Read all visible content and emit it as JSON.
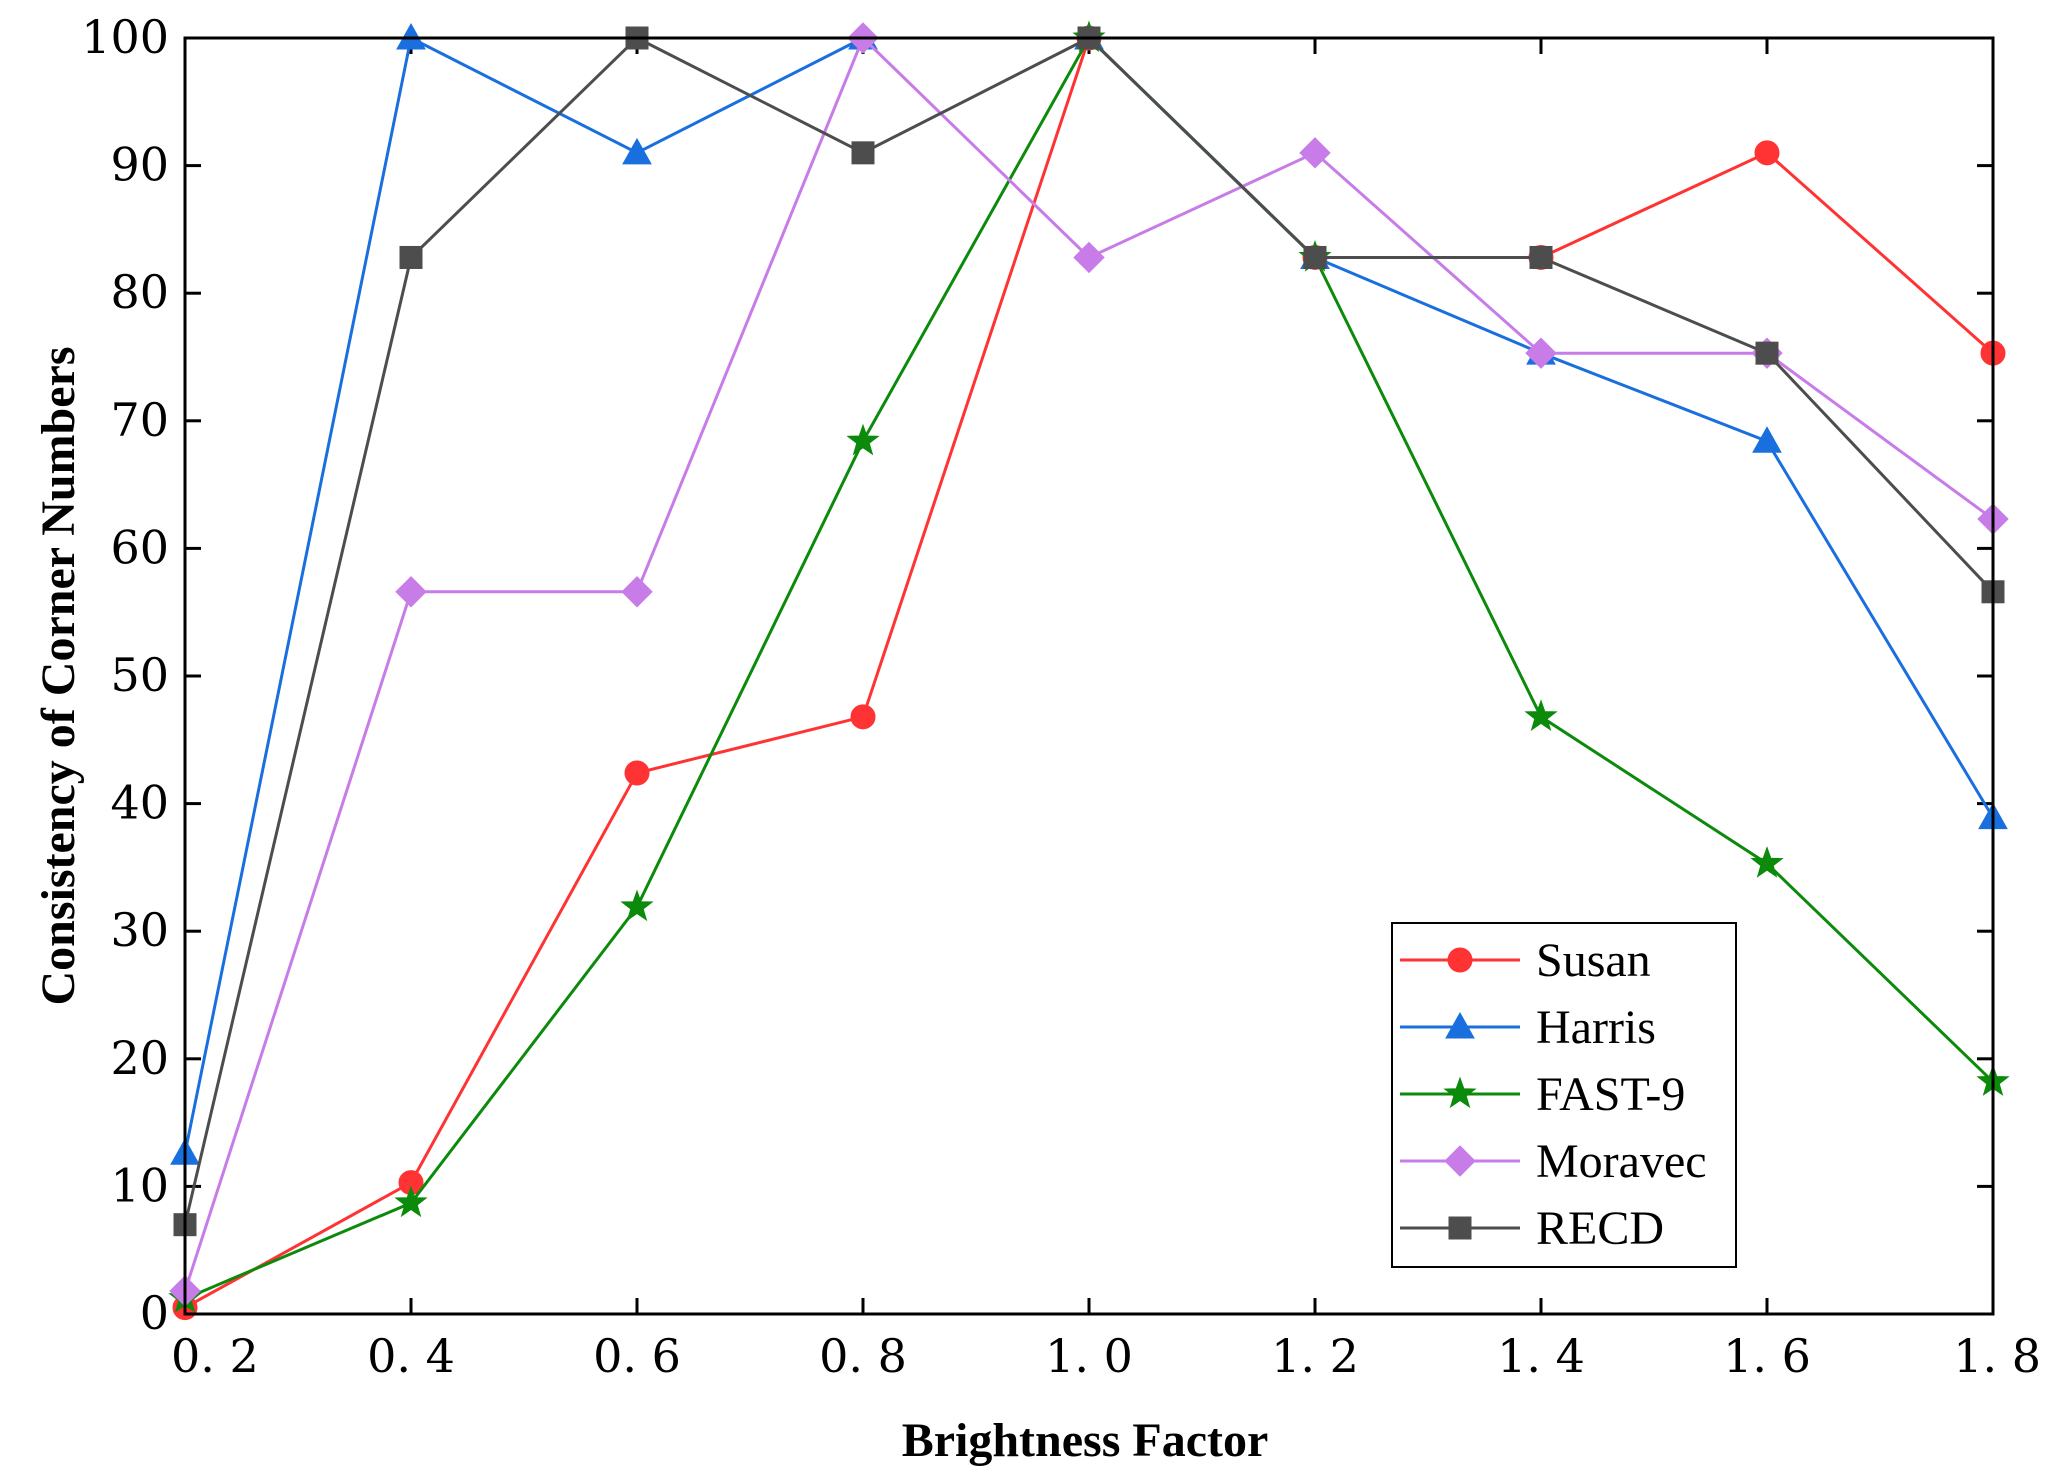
{
  "chart_data": {
    "type": "line",
    "title": "",
    "xlabel": "Brightness Factor",
    "ylabel": "Consistency of Corner Numbers",
    "x": [
      0.2,
      0.4,
      0.6,
      0.8,
      1.0,
      1.2,
      1.4,
      1.6,
      1.8
    ],
    "x_tick_labels": [
      "0. 2",
      "0. 4",
      "0. 6",
      "0. 8",
      "1. 0",
      "1. 2",
      "1. 4",
      "1. 6",
      "1. 8"
    ],
    "y_ticks": [
      0,
      10,
      20,
      30,
      40,
      50,
      60,
      70,
      80,
      90,
      100
    ],
    "y_tick_labels": [
      "0",
      "10",
      "20",
      "30",
      "40",
      "50",
      "60",
      "70",
      "80",
      "90",
      "100"
    ],
    "xlim": [
      0.2,
      1.8
    ],
    "ylim": [
      0,
      100
    ],
    "grid": false,
    "legend_position": "bottom-right",
    "series": [
      {
        "name": "Susan",
        "color": "#ff3333",
        "marker": "circle",
        "values": [
          0.5,
          10.3,
          42.4,
          46.8,
          100,
          82.8,
          82.8,
          91.0,
          75.3
        ]
      },
      {
        "name": "Harris",
        "color": "#1a6fdf",
        "marker": "triangle",
        "values": [
          12.6,
          100,
          91.0,
          100,
          100,
          82.8,
          75.3,
          68.4,
          38.9
        ]
      },
      {
        "name": "FAST-9",
        "color": "#0b8a0b",
        "marker": "star",
        "values": [
          1.2,
          8.7,
          31.9,
          68.4,
          100,
          82.8,
          46.8,
          35.3,
          18.2
        ]
      },
      {
        "name": "Moravec",
        "color": "#c77ce8",
        "marker": "diamond",
        "values": [
          1.8,
          56.6,
          56.6,
          100,
          82.8,
          91.0,
          75.3,
          75.3,
          62.3
        ]
      },
      {
        "name": "RECD",
        "color": "#4d4d4d",
        "marker": "square",
        "values": [
          7.0,
          82.8,
          100,
          91.0,
          100,
          82.8,
          82.8,
          75.3,
          56.6
        ]
      }
    ]
  }
}
